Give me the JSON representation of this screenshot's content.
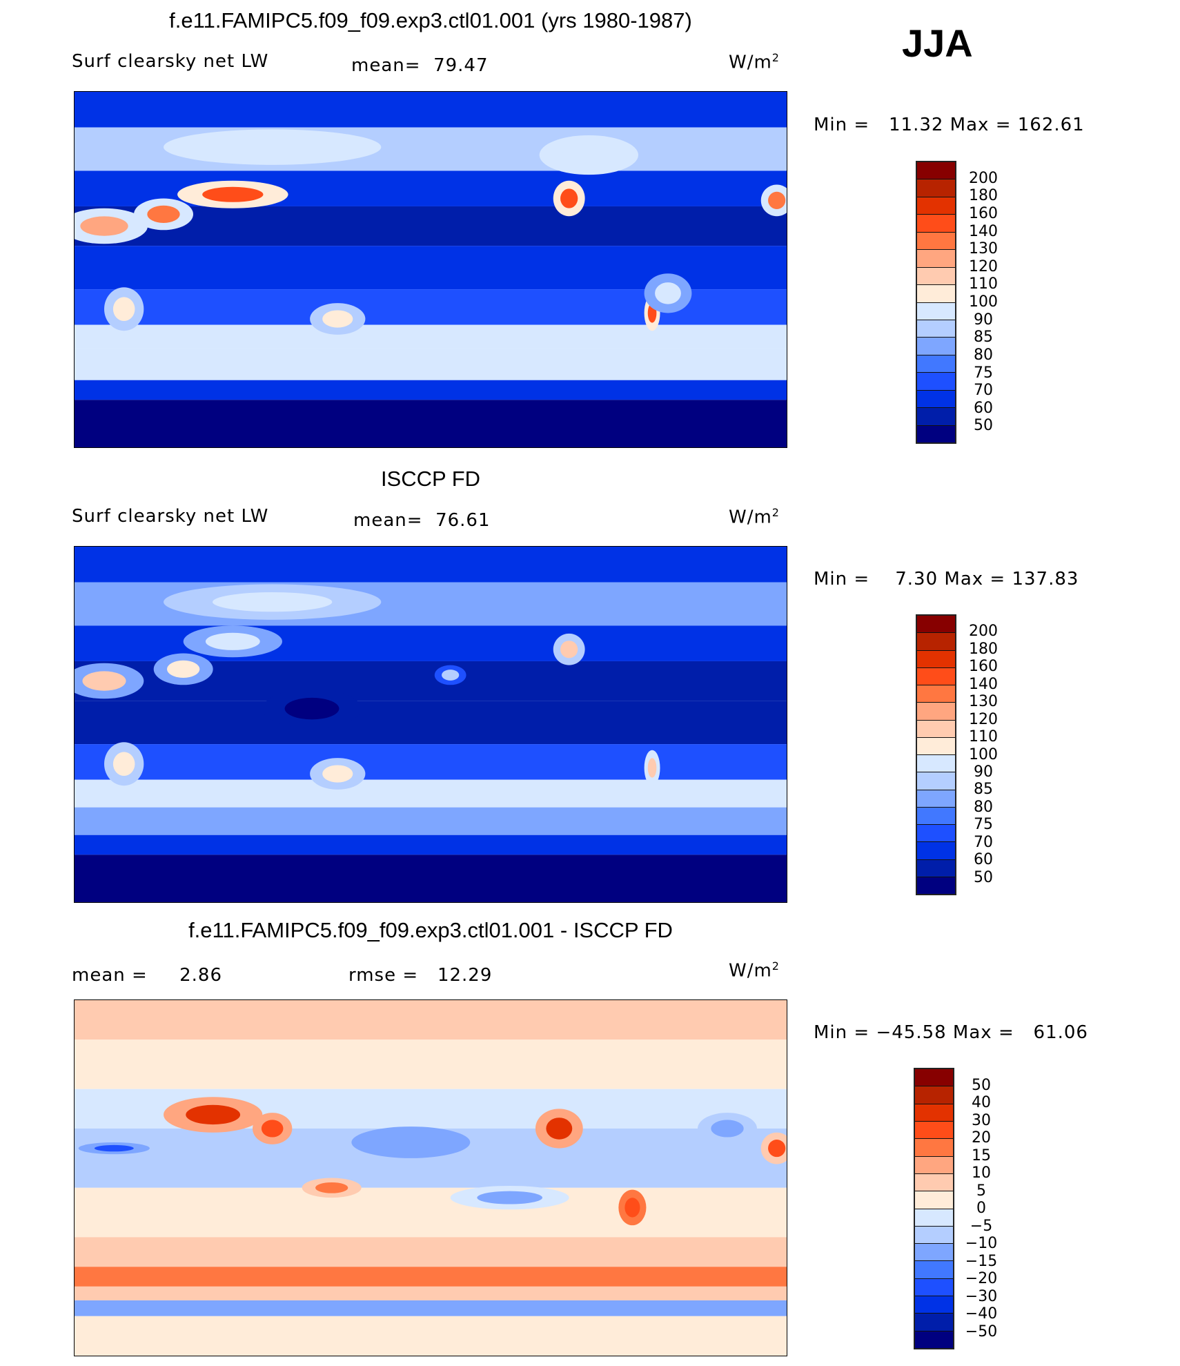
{
  "season": "JJA",
  "colors": [
    "#000080",
    "#001eaa",
    "#0032e6",
    "#1e50ff",
    "#4178ff",
    "#7ea6ff",
    "#b4ceff",
    "#d7e8ff",
    "#ffecd9",
    "#ffcbb0",
    "#ffa680",
    "#ff7741",
    "#ff4d19",
    "#e33200",
    "#b72300",
    "#870000"
  ],
  "chart_data": [
    {
      "type": "heatmap",
      "title": "f.e11.FAMIPC5.f09_f09.exp3.ctl01.001 (yrs 1980-1987)",
      "variable": "Surf clearsky net LW",
      "mean_label": "mean=",
      "mean": "79.47",
      "units": "W/m",
      "units_sup": "2",
      "minmax": "Min =   11.32 Max = 162.61",
      "levels": [
        "200",
        "180",
        "160",
        "140",
        "130",
        "120",
        "110",
        "100",
        "90",
        "85",
        "80",
        "75",
        "70",
        "60",
        "50"
      ],
      "bands": [
        [
          90,
          72,
          62
        ],
        [
          72,
          50,
          88
        ],
        [
          50,
          32,
          65
        ],
        [
          32,
          12,
          55
        ],
        [
          12,
          -10,
          60
        ],
        [
          -10,
          -28,
          72
        ],
        [
          -28,
          -40,
          92
        ],
        [
          -40,
          -56,
          95
        ],
        [
          -56,
          -66,
          68
        ],
        [
          -66,
          -90,
          45
        ]
      ],
      "blobs": [
        [
          15,
          22,
          22,
          9,
          125
        ],
        [
          45,
          28,
          15,
          8,
          135
        ],
        [
          80,
          38,
          28,
          7,
          150
        ],
        [
          100,
          62,
          55,
          9,
          92
        ],
        [
          250,
          36,
          8,
          9,
          150
        ],
        [
          260,
          58,
          25,
          10,
          92
        ],
        [
          133,
          -25,
          14,
          8,
          105
        ],
        [
          25,
          -20,
          10,
          11,
          105
        ],
        [
          292,
          -22,
          4,
          9,
          140
        ],
        [
          300,
          -12,
          12,
          10,
          90
        ],
        [
          355,
          35,
          8,
          8,
          130
        ]
      ]
    },
    {
      "type": "heatmap",
      "title": "ISCCP FD",
      "variable": "Surf clearsky net LW",
      "mean_label": "mean=",
      "mean": "76.61",
      "units": "W/m",
      "units_sup": "2",
      "minmax": "Min =    7.30 Max = 137.83",
      "levels": [
        "200",
        "180",
        "160",
        "140",
        "130",
        "120",
        "110",
        "100",
        "90",
        "85",
        "80",
        "75",
        "70",
        "60",
        "50"
      ],
      "bands": [
        [
          90,
          72,
          62
        ],
        [
          72,
          50,
          82
        ],
        [
          50,
          32,
          65
        ],
        [
          32,
          12,
          55
        ],
        [
          12,
          -10,
          52
        ],
        [
          -10,
          -28,
          70
        ],
        [
          -28,
          -42,
          92
        ],
        [
          -42,
          -56,
          82
        ],
        [
          -56,
          -66,
          65
        ],
        [
          -66,
          -90,
          45
        ]
      ],
      "blobs": [
        [
          15,
          22,
          20,
          9,
          110
        ],
        [
          55,
          28,
          15,
          8,
          105
        ],
        [
          80,
          42,
          25,
          8,
          95
        ],
        [
          100,
          62,
          55,
          9,
          90
        ],
        [
          250,
          38,
          8,
          8,
          110
        ],
        [
          133,
          -25,
          14,
          8,
          100
        ],
        [
          25,
          -20,
          10,
          11,
          105
        ],
        [
          120,
          8,
          25,
          10,
          48
        ],
        [
          190,
          25,
          8,
          5,
          88
        ],
        [
          292,
          -22,
          4,
          9,
          115
        ]
      ]
    },
    {
      "type": "heatmap",
      "title": "f.e11.FAMIPC5.f09_f09.exp3.ctl01.001 - ISCCP FD",
      "mean_label": "mean =",
      "mean": "2.86",
      "rmse_label": "rmse =",
      "rmse": "12.29",
      "units": "W/m",
      "units_sup": "2",
      "minmax": "Min = −45.58 Max =   61.06",
      "levels": [
        "50",
        "40",
        "30",
        "20",
        "15",
        "10",
        "5",
        "0",
        "−5",
        "−10",
        "−15",
        "−20",
        "−30",
        "−40",
        "−50"
      ],
      "bands": [
        [
          90,
          70,
          8
        ],
        [
          70,
          45,
          4
        ],
        [
          45,
          25,
          -4
        ],
        [
          25,
          -5,
          -8
        ],
        [
          -5,
          -30,
          2
        ],
        [
          -30,
          -45,
          8
        ],
        [
          -45,
          -55,
          18
        ],
        [
          -55,
          -62,
          6
        ],
        [
          -62,
          -70,
          -12
        ],
        [
          -70,
          -90,
          4
        ]
      ],
      "blobs": [
        [
          70,
          32,
          25,
          9,
          32
        ],
        [
          100,
          25,
          10,
          8,
          25
        ],
        [
          245,
          25,
          12,
          10,
          32
        ],
        [
          282,
          -15,
          7,
          9,
          28
        ],
        [
          330,
          25,
          15,
          8,
          -15
        ],
        [
          20,
          15,
          18,
          3,
          -22
        ],
        [
          170,
          18,
          30,
          8,
          -15
        ],
        [
          220,
          -10,
          30,
          6,
          -12
        ],
        [
          130,
          -5,
          15,
          5,
          18
        ],
        [
          355,
          15,
          8,
          8,
          25
        ]
      ]
    }
  ]
}
